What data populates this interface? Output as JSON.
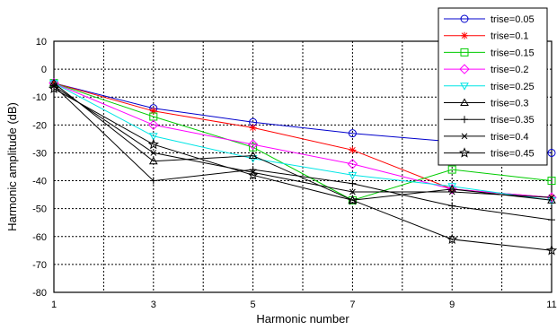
{
  "chart_data": {
    "type": "line",
    "title": "",
    "xlabel": "Harmonic number",
    "ylabel": "Harmonic amplitude (dB)",
    "x": [
      1,
      3,
      5,
      7,
      9,
      11
    ],
    "xlim": [
      1,
      11
    ],
    "ylim": [
      -80,
      10
    ],
    "xticks": [
      "1",
      "3",
      "5",
      "7",
      "9",
      "11"
    ],
    "yticks": [
      "10",
      "0",
      "-10",
      "-20",
      "-30",
      "-40",
      "-50",
      "-60",
      "-70",
      "-80"
    ],
    "grid": true,
    "legend_position": "top-right",
    "series": [
      {
        "name": "trise=0.05",
        "color": "#0000cc",
        "marker": "circle",
        "values": [
          -5,
          -14,
          -19,
          -23,
          -26,
          -30
        ]
      },
      {
        "name": "trise=0.1",
        "color": "#ff0000",
        "marker": "star",
        "values": [
          -5,
          -15,
          -21,
          -29,
          -43,
          -46
        ]
      },
      {
        "name": "trise=0.15",
        "color": "#00cc00",
        "marker": "square",
        "values": [
          -5,
          -17,
          -28,
          -47,
          -36,
          -40
        ]
      },
      {
        "name": "trise=0.2",
        "color": "#ff00ff",
        "marker": "diamond",
        "values": [
          -5,
          -20,
          -27,
          -34,
          -43,
          -46
        ]
      },
      {
        "name": "trise=0.25",
        "color": "#00e5e5",
        "marker": "triangle-down",
        "values": [
          -5,
          -24,
          -32,
          -38,
          -42,
          -47
        ]
      },
      {
        "name": "trise=0.3",
        "color": "#000000",
        "marker": "triangle-up",
        "values": [
          -5,
          -33,
          -31,
          -47,
          -43,
          -47
        ]
      },
      {
        "name": "trise=0.35",
        "color": "#000000",
        "marker": "plus",
        "values": [
          -6,
          -40,
          -36,
          -41,
          -49,
          -54
        ]
      },
      {
        "name": "trise=0.4",
        "color": "#000000",
        "marker": "x",
        "values": [
          -6,
          -30,
          -37,
          -44,
          -44,
          -46
        ]
      },
      {
        "name": "trise=0.45",
        "color": "#000000",
        "marker": "pentagram",
        "values": [
          -7,
          -27,
          -38,
          -47,
          -61,
          -65
        ]
      }
    ]
  }
}
